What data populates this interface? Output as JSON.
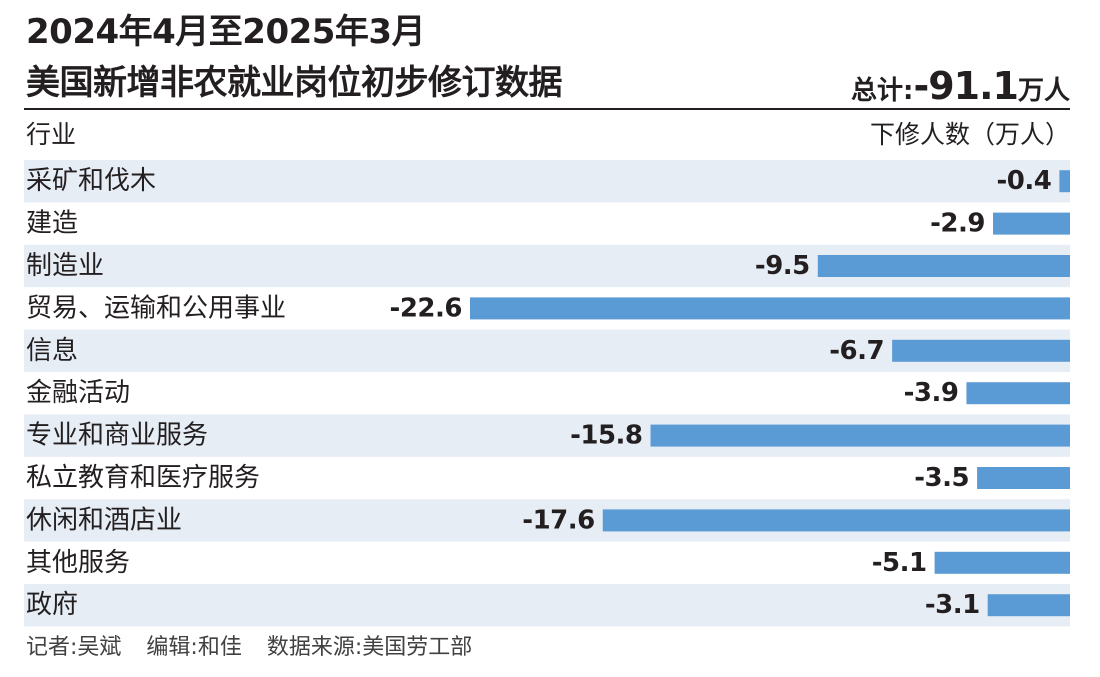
{
  "header": {
    "title_line1": "2024年4月至2025年3月",
    "title_line2": "美国新增非农就业岗位初步修订数据",
    "total_label": "总计:",
    "total_value": "-91.1",
    "total_unit": "万人"
  },
  "column_headers": {
    "industry": "行业",
    "value": "下修人数（万人）"
  },
  "chart_data": {
    "type": "bar",
    "orientation": "horizontal",
    "categories": [
      "采矿和伐木",
      "建造",
      "制造业",
      "贸易、运输和公用事业",
      "信息",
      "金融活动",
      "专业和商业服务",
      "私立教育和医疗服务",
      "休闲和酒店业",
      "其他服务",
      "政府"
    ],
    "values": [
      -0.4,
      -2.9,
      -9.5,
      -22.6,
      -6.7,
      -3.9,
      -15.8,
      -3.5,
      -17.6,
      -5.1,
      -3.1
    ],
    "value_labels": [
      "-0.4",
      "-2.9",
      "-9.5",
      "-22.6",
      "-6.7",
      "-3.9",
      "-15.8",
      "-3.5",
      "-17.6",
      "-5.1",
      "-3.1"
    ],
    "xlim": [
      -22.6,
      0
    ],
    "grid": false,
    "bar_color": "#5b9bd5",
    "row_stripe_color": "#e6edf5"
  },
  "footer": {
    "reporter": "记者:吴斌",
    "editor": "编辑:和佳",
    "source": "数据来源:美国劳工部"
  }
}
